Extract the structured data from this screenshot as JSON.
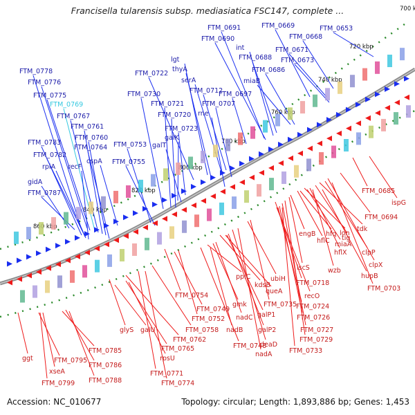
{
  "title": "Francisella tularensis subsp. mediasiatica FSC147, complete ...",
  "footer": {
    "accession": "Accession: NC_010677",
    "summary": "Topology: circular; Length: 1,893,886 bp; Genes: 1,453"
  },
  "colors": {
    "forward_strand": "#1a2ef0",
    "reverse_strand": "#ee1a1a",
    "forward_label": "#1a1aa8",
    "reverse_label": "#c41a1a",
    "highlight_label": "#34c8e0",
    "backbone": "#8a8a8a",
    "tick": "#2a8a2a"
  },
  "kbp_ticks": [
    {
      "text": "700 kbp"
    },
    {
      "text": "720 kbp"
    },
    {
      "text": "740 kbp"
    },
    {
      "text": "760 kbp"
    },
    {
      "text": "780 kbp"
    },
    {
      "text": "800 kbp"
    },
    {
      "text": "820 kbp"
    },
    {
      "text": "840 kbp"
    },
    {
      "text": "860 kbp"
    }
  ],
  "forward_genes": [
    "FTM_0778",
    "FTM_0776",
    "FTM_0775",
    "FTM_0769",
    "FTM_0767",
    "FTM_0761",
    "FTM_0760",
    "FTM_0783",
    "FTM_0764",
    "FTM_0782",
    "rpiA",
    "recF",
    "cspA",
    "gidA",
    "FTM_0787",
    "FTM_0753",
    "FTM_0755",
    "FTM_0730",
    "FTM_0721",
    "FTM_0720",
    "galK",
    "galT",
    "FTM_0723",
    "FTM_0722",
    "thyA",
    "lgt",
    "serA",
    "FTM_0712",
    "rne",
    "FTM_0707",
    "FTM_0697",
    "FTM_0691",
    "FTM_0690",
    "int",
    "FTM_0688",
    "miaB",
    "FTM_0686",
    "FTM_0669",
    "FTM_0668",
    "FTM_0653",
    "FTM_0671",
    "FTM_0673"
  ],
  "reverse_genes": [
    "ggt",
    "FTM_0795",
    "xseA",
    "FTM_0799",
    "FTM_0785",
    "FTM_0786",
    "FTM_0788",
    "glyS",
    "galU",
    "FTM_0762",
    "FTM_0765",
    "rpsU",
    "FTM_0771",
    "FTM_0774",
    "FTM_0758",
    "FTM_0754",
    "FTM_0749",
    "FTM_0752",
    "ppiC",
    "gmk",
    "nadC",
    "nadB",
    "FTM_0748",
    "kdsB",
    "queA",
    "galP1",
    "galP2",
    "deaD",
    "nadA",
    "ubiH",
    "FTM_0735",
    "FTM_0718",
    "recO",
    "FTM_0724",
    "FTM_0726",
    "FTM_0727",
    "FTM_0729",
    "FTM_0733",
    "iscS",
    "engB",
    "hflC",
    "hfq",
    "lon",
    "miaA",
    "hflX",
    "tig",
    "tdk",
    "clpP",
    "clpX",
    "wzb",
    "hupB",
    "FTM_0703",
    "FTM_0694",
    "FTM_0685",
    "ispG"
  ]
}
